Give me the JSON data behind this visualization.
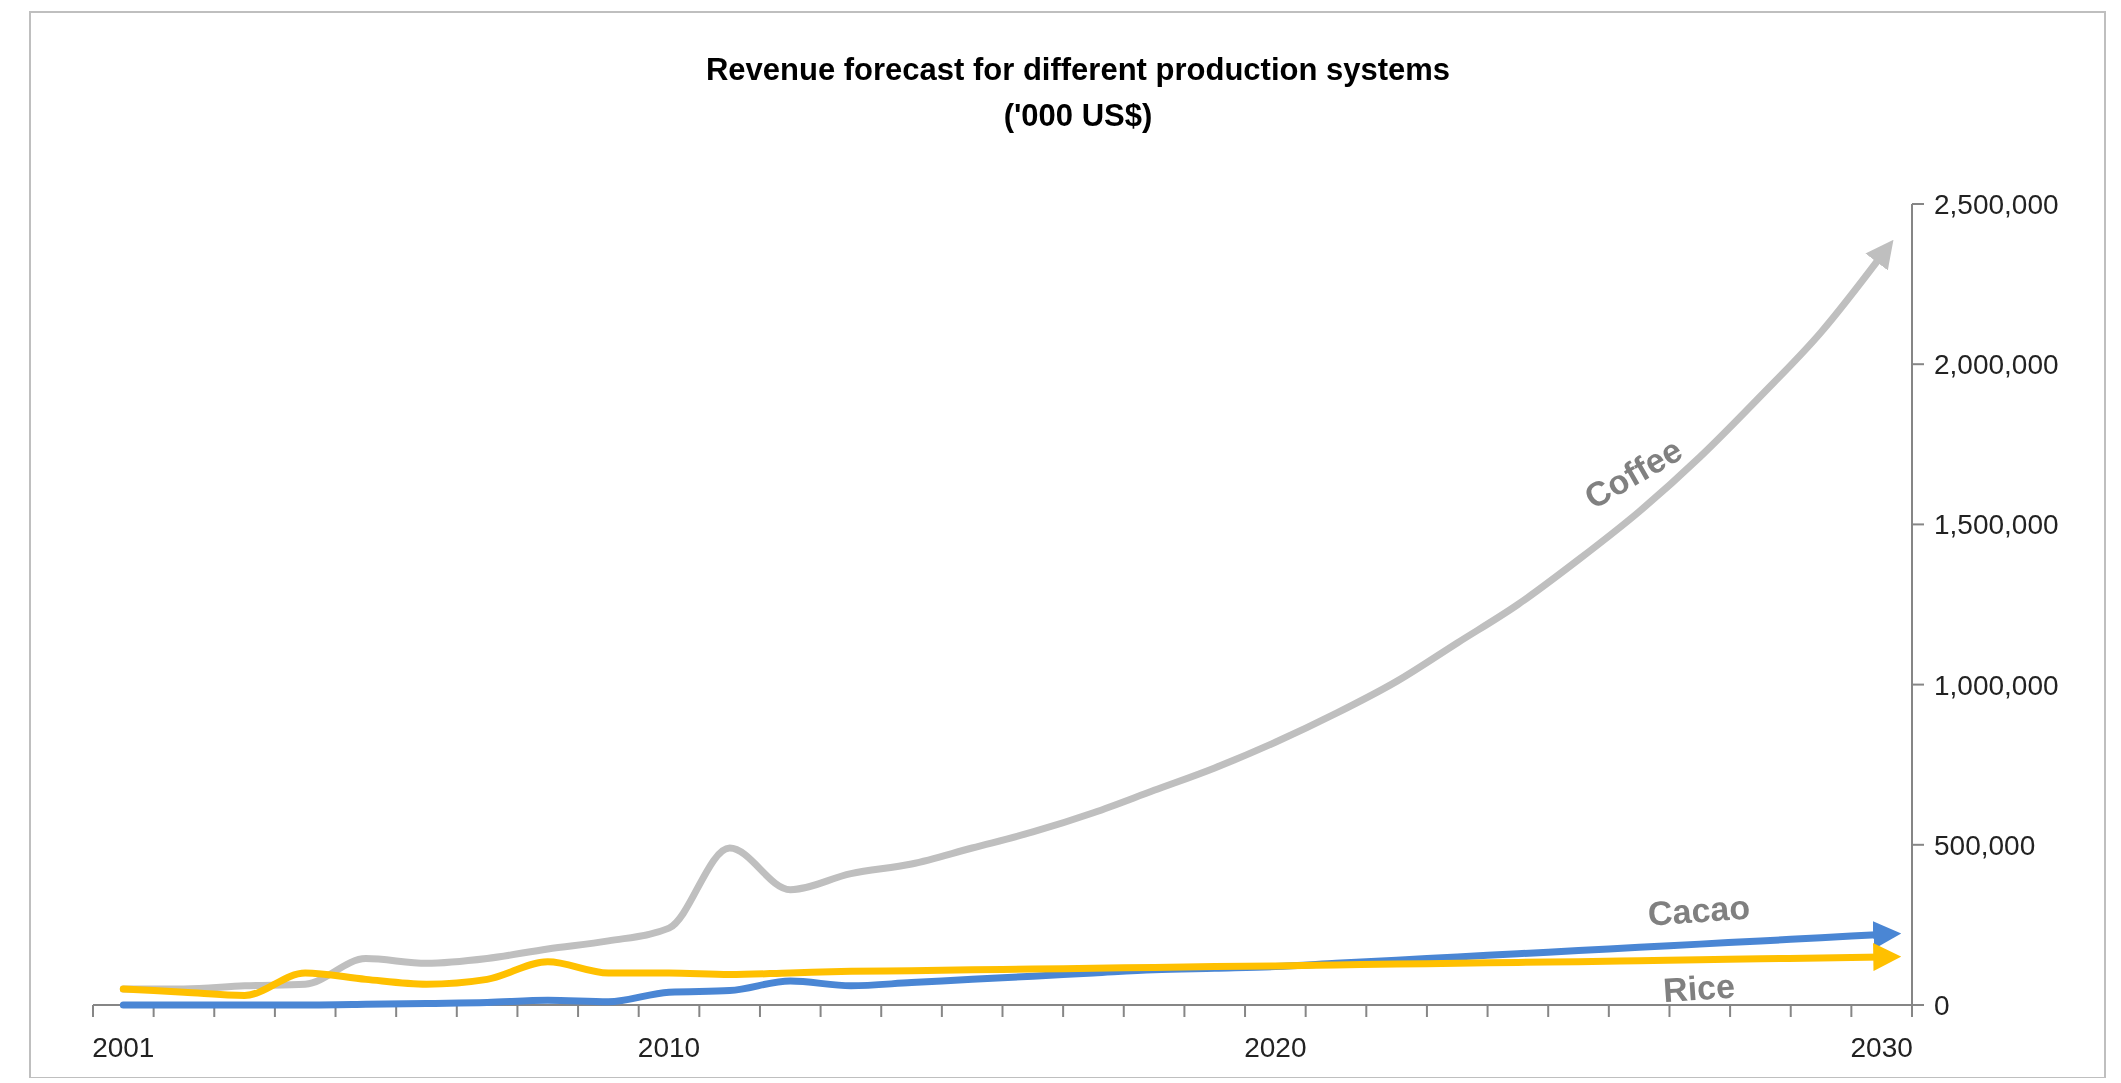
{
  "chart_data": {
    "type": "line",
    "title": "Revenue  forecast for different production systems",
    "subtitle": "('000 US$)",
    "categories": [
      "2001",
      null,
      null,
      null,
      null,
      null,
      null,
      null,
      null,
      "2010",
      null,
      null,
      null,
      null,
      null,
      null,
      null,
      null,
      null,
      "2020",
      null,
      null,
      null,
      null,
      null,
      null,
      null,
      null,
      null,
      "2030"
    ],
    "series": [
      {
        "name": "Coffee",
        "color": "#bfbfbf",
        "values": [
          50000,
          50000,
          60000,
          65000,
          145000,
          130000,
          145000,
          175000,
          200000,
          240000,
          490000,
          360000,
          410000,
          440000,
          490000,
          540000,
          600000,
          670000,
          740000,
          820000,
          910000,
          1010000,
          1130000,
          1250000,
          1390000,
          1540000,
          1710000,
          1900000,
          2100000,
          2340000
        ]
      },
      {
        "name": "Cacao",
        "color": "#4a86d4",
        "values": [
          0,
          0,
          0,
          0,
          2000,
          5000,
          8000,
          15000,
          10000,
          40000,
          45000,
          75000,
          60000,
          70000,
          80000,
          90000,
          100000,
          110000,
          115000,
          120000,
          130000,
          140000,
          150000,
          160000,
          170000,
          180000,
          190000,
          200000,
          210000,
          220000
        ]
      },
      {
        "name": "Rice",
        "color": "#ffc000",
        "values": [
          50000,
          40000,
          30000,
          100000,
          80000,
          65000,
          80000,
          135000,
          100000,
          100000,
          95000,
          100000,
          105000,
          107000,
          110000,
          112000,
          115000,
          117000,
          120000,
          122000,
          125000,
          128000,
          130000,
          133000,
          135000,
          138000,
          141000,
          144000,
          147000,
          150000
        ]
      }
    ],
    "ylim": [
      0,
      2500000
    ],
    "yticks": [
      {
        "value": 0,
        "label": "0"
      },
      {
        "value": 500000,
        "label": "500,000"
      },
      {
        "value": 1000000,
        "label": "1,000,000"
      },
      {
        "value": 1500000,
        "label": "1,500,000"
      },
      {
        "value": 2000000,
        "label": "2,000,000"
      },
      {
        "value": 2500000,
        "label": "2,500,000"
      }
    ],
    "grid": false,
    "marker": "none",
    "line_style": "solid"
  }
}
